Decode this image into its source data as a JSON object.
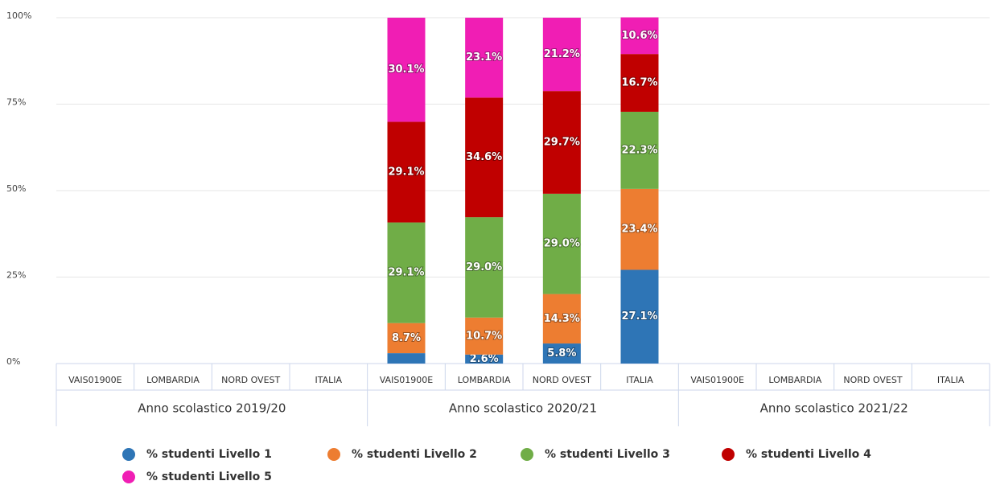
{
  "chart_data": {
    "type": "stacked_bar",
    "groups": [
      "Anno scolastico 2019/20",
      "Anno scolastico 2020/21",
      "Anno scolastico 2021/22"
    ],
    "categories": [
      "VAIS01900E",
      "LOMBARDIA",
      "NORD OVEST",
      "ITALIA",
      "VAIS01900E",
      "LOMBARDIA",
      "NORD OVEST",
      "ITALIA",
      "VAIS01900E",
      "LOMBARDIA",
      "NORD OVEST",
      "ITALIA"
    ],
    "ylim": [
      0,
      100
    ],
    "yticks": [
      {
        "value": 0,
        "label": "0%"
      },
      {
        "value": 25,
        "label": "25%"
      },
      {
        "value": 50,
        "label": "50%"
      },
      {
        "value": 75,
        "label": "75%"
      },
      {
        "value": 100,
        "label": "100%"
      }
    ],
    "grid": true,
    "series": [
      {
        "name": "% studenti Livello 1",
        "color": "#2e75b6",
        "values": [
          null,
          null,
          null,
          null,
          3.0,
          2.6,
          5.8,
          27.1,
          null,
          null,
          null,
          null
        ],
        "value_labels": [
          null,
          null,
          null,
          null,
          null,
          "2.6%",
          "5.8%",
          "27.1%",
          null,
          null,
          null,
          null
        ]
      },
      {
        "name": "% studenti Livello 2",
        "color": "#ed7d31",
        "values": [
          null,
          null,
          null,
          null,
          8.7,
          10.7,
          14.3,
          23.4,
          null,
          null,
          null,
          null
        ],
        "value_labels": [
          null,
          null,
          null,
          null,
          "8.7%",
          "10.7%",
          "14.3%",
          "23.4%",
          null,
          null,
          null,
          null
        ]
      },
      {
        "name": "% studenti Livello 3",
        "color": "#70ad47",
        "values": [
          null,
          null,
          null,
          null,
          29.1,
          29.0,
          29.0,
          22.3,
          null,
          null,
          null,
          null
        ],
        "value_labels": [
          null,
          null,
          null,
          null,
          "29.1%",
          "29.0%",
          "29.0%",
          "22.3%",
          null,
          null,
          null,
          null
        ]
      },
      {
        "name": "% studenti Livello 4",
        "color": "#c00000",
        "values": [
          null,
          null,
          null,
          null,
          29.1,
          34.6,
          29.7,
          16.7,
          null,
          null,
          null,
          null
        ],
        "value_labels": [
          null,
          null,
          null,
          null,
          "29.1%",
          "34.6%",
          "29.7%",
          "16.7%",
          null,
          null,
          null,
          null
        ]
      },
      {
        "name": "% studenti Livello 5",
        "color": "#f01eb4",
        "values": [
          null,
          null,
          null,
          null,
          30.1,
          23.1,
          21.2,
          10.6,
          null,
          null,
          null,
          null
        ],
        "value_labels": [
          null,
          null,
          null,
          null,
          "30.1%",
          "23.1%",
          "21.2%",
          "10.6%",
          null,
          null,
          null,
          null
        ]
      }
    ]
  }
}
